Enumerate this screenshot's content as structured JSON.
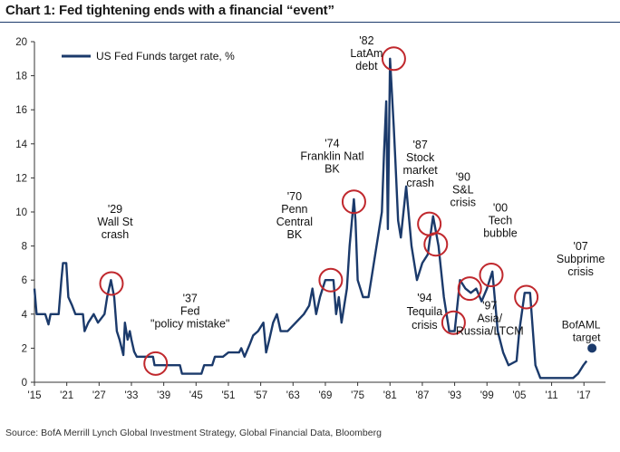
{
  "header": {
    "title": "Chart 1: Fed tightening ends with a financial “event”"
  },
  "footer": {
    "source": "Source:  BofA Merrill Lynch Global Investment Strategy, Global Financial Data, Bloomberg"
  },
  "colors": {
    "series": "#1b3a6b",
    "highlight": "#c0282d",
    "marker": "#1b3a6b",
    "axis": "#333333"
  },
  "chart_data": {
    "type": "line",
    "title": "Chart 1: Fed tightening ends with a financial “event”",
    "xlabel": "",
    "ylabel": "",
    "xlim": [
      1915,
      2021
    ],
    "ylim": [
      0,
      20
    ],
    "grid": false,
    "legend": {
      "position": "top-left",
      "entries": [
        "US Fed Funds target rate, %"
      ]
    },
    "x_tick_labels": [
      "'15",
      "'21",
      "'27",
      "'33",
      "'39",
      "'45",
      "'51",
      "'57",
      "'63",
      "'69",
      "'75",
      "'81",
      "'87",
      "'93",
      "'99",
      "'05",
      "'11",
      "'17"
    ],
    "x_tick_values": [
      1915,
      1921,
      1927,
      1933,
      1939,
      1945,
      1951,
      1957,
      1963,
      1969,
      1975,
      1981,
      1987,
      1993,
      1999,
      2005,
      2011,
      2017
    ],
    "y_tick_values": [
      0,
      2,
      4,
      6,
      8,
      10,
      12,
      14,
      16,
      18,
      20
    ],
    "series": [
      {
        "name": "US Fed Funds target rate, %",
        "points": [
          [
            1915,
            5.5
          ],
          [
            1915.4,
            4.0
          ],
          [
            1917,
            4.0
          ],
          [
            1917.6,
            3.4
          ],
          [
            1918,
            4.0
          ],
          [
            1919.5,
            4.0
          ],
          [
            1920,
            6.0
          ],
          [
            1920.3,
            7.0
          ],
          [
            1920.9,
            7.0
          ],
          [
            1921.3,
            5.0
          ],
          [
            1922,
            4.5
          ],
          [
            1922.6,
            4.0
          ],
          [
            1924,
            4.0
          ],
          [
            1924.3,
            3.0
          ],
          [
            1925,
            3.5
          ],
          [
            1926,
            4.0
          ],
          [
            1926.8,
            3.5
          ],
          [
            1928,
            4.0
          ],
          [
            1928.5,
            5.0
          ],
          [
            1929.2,
            6.0
          ],
          [
            1929.8,
            5.0
          ],
          [
            1930.3,
            3.0
          ],
          [
            1930.8,
            2.5
          ],
          [
            1931.5,
            1.6
          ],
          [
            1931.8,
            3.5
          ],
          [
            1932.3,
            2.5
          ],
          [
            1932.7,
            3.0
          ],
          [
            1933,
            2.5
          ],
          [
            1933.5,
            1.8
          ],
          [
            1934,
            1.5
          ],
          [
            1937,
            1.5
          ],
          [
            1937.3,
            1.0
          ],
          [
            1942,
            1.0
          ],
          [
            1942.4,
            0.5
          ],
          [
            1946,
            0.5
          ],
          [
            1946.5,
            1.0
          ],
          [
            1948,
            1.0
          ],
          [
            1948.5,
            1.5
          ],
          [
            1950,
            1.5
          ],
          [
            1951,
            1.75
          ],
          [
            1953,
            1.75
          ],
          [
            1953.4,
            2.0
          ],
          [
            1954,
            1.5
          ],
          [
            1955,
            2.25
          ],
          [
            1955.6,
            2.75
          ],
          [
            1956.5,
            3.0
          ],
          [
            1957.5,
            3.5
          ],
          [
            1958,
            1.75
          ],
          [
            1958.6,
            2.5
          ],
          [
            1959.3,
            3.5
          ],
          [
            1960,
            4.0
          ],
          [
            1960.7,
            3.0
          ],
          [
            1962,
            3.0
          ],
          [
            1963.5,
            3.5
          ],
          [
            1965,
            4.0
          ],
          [
            1966,
            4.5
          ],
          [
            1966.6,
            5.5
          ],
          [
            1967.3,
            4.0
          ],
          [
            1968,
            5.0
          ],
          [
            1969,
            6.0
          ],
          [
            1970.5,
            6.0
          ],
          [
            1971,
            4.0
          ],
          [
            1971.5,
            5.0
          ],
          [
            1972,
            3.5
          ],
          [
            1973,
            5.5
          ],
          [
            1973.5,
            8.0
          ],
          [
            1974.3,
            10.75
          ],
          [
            1974.6,
            9.5
          ],
          [
            1975,
            6.0
          ],
          [
            1976,
            5.0
          ],
          [
            1977,
            5.0
          ],
          [
            1977.5,
            6.0
          ],
          [
            1978.5,
            8.0
          ],
          [
            1979.5,
            10.0
          ],
          [
            1979.9,
            13.5
          ],
          [
            1980.3,
            16.5
          ],
          [
            1980.6,
            9.0
          ],
          [
            1981,
            19.0
          ],
          [
            1981.7,
            15.0
          ],
          [
            1982,
            13.0
          ],
          [
            1982.5,
            9.5
          ],
          [
            1983,
            8.5
          ],
          [
            1984,
            11.5
          ],
          [
            1985,
            8.0
          ],
          [
            1986,
            6.0
          ],
          [
            1987,
            7.0
          ],
          [
            1988,
            7.5
          ],
          [
            1989,
            9.75
          ],
          [
            1990,
            8.0
          ],
          [
            1991,
            5.0
          ],
          [
            1992,
            3.0
          ],
          [
            1993,
            3.0
          ],
          [
            1994,
            6.0
          ],
          [
            1995,
            5.5
          ],
          [
            1996,
            5.25
          ],
          [
            1997,
            5.5
          ],
          [
            1998,
            4.75
          ],
          [
            1999,
            5.5
          ],
          [
            2000,
            6.5
          ],
          [
            2001,
            3.0
          ],
          [
            2002,
            1.75
          ],
          [
            2003,
            1.0
          ],
          [
            2004.5,
            1.25
          ],
          [
            2005,
            3.0
          ],
          [
            2006,
            5.25
          ],
          [
            2007,
            5.25
          ],
          [
            2008,
            1.0
          ],
          [
            2008.9,
            0.25
          ],
          [
            2015,
            0.25
          ],
          [
            2015.9,
            0.5
          ],
          [
            2016.9,
            1.0
          ],
          [
            2017.5,
            1.25
          ]
        ]
      }
    ],
    "target_marker": {
      "label_line1": "BofAML",
      "label_line2": "target",
      "x": 2018.5,
      "y": 2.0
    },
    "annotations": [
      {
        "id": "wall-st-crash",
        "lines": [
          "'29",
          "Wall St",
          "crash"
        ],
        "x": 1929.3,
        "y": 5.8
      },
      {
        "id": "policy-mistake",
        "lines": [
          "'37",
          "Fed",
          "\"policy mistake\""
        ],
        "x": 1937.5,
        "y": 1.1
      },
      {
        "id": "penn-central",
        "lines": [
          "'70",
          "Penn",
          "Central",
          "BK"
        ],
        "x": 1970,
        "y": 6.0
      },
      {
        "id": "franklin-natl",
        "lines": [
          "'74",
          "Franklin Natl",
          "BK"
        ],
        "x": 1974.3,
        "y": 10.6
      },
      {
        "id": "latam-debt",
        "lines": [
          "'82",
          "LatAm",
          "debt"
        ],
        "x": 1981.7,
        "y": 19.0
      },
      {
        "id": "stock-market-crash",
        "lines": [
          "'87",
          "Stock",
          "market",
          "crash"
        ],
        "x": 1988.3,
        "y": 9.3
      },
      {
        "id": "tequila-crisis",
        "lines": [
          "'94",
          "Tequila",
          "crisis"
        ],
        "x": 1992.8,
        "y": 3.5
      },
      {
        "id": "sl-crisis",
        "lines": [
          "'90",
          "S&L",
          "crisis"
        ],
        "x": 1989.5,
        "y": 8.1
      },
      {
        "id": "asia-russia-ltcm",
        "lines": [
          "'97",
          "Asia/",
          "Russia/LTCM"
        ],
        "x": 1995.8,
        "y": 5.5
      },
      {
        "id": "tech-bubble",
        "lines": [
          "'00",
          "Tech",
          "bubble"
        ],
        "x": 1999.8,
        "y": 6.3
      },
      {
        "id": "subprime-crisis",
        "lines": [
          "'07",
          "Subprime",
          "crisis"
        ],
        "x": 2006.3,
        "y": 5.0
      }
    ]
  }
}
